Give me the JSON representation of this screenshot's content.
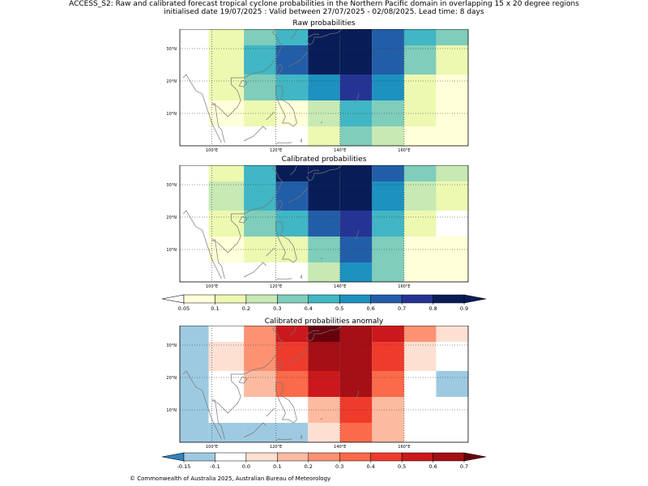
{
  "header": {
    "title_line1": "ACCESS_S2: Raw and calibrated forecast tropical cyclone probabilities in the Northern Pacific domain in overlapping 15 x 20 degree regions",
    "title_line2": "initialised date 19/07/2025 :  Valid between 27/07/2025 - 02/08/2025. Lead time: 8 days"
  },
  "footer": {
    "copyright": "© Commonwealth of Australia 2025, Australian Bureau of Meteorology"
  },
  "map": {
    "lat_labels": [
      "30°N",
      "20°N",
      "10°N"
    ],
    "lon_labels": [
      "100°E",
      "120°E",
      "140°E",
      "160°E"
    ],
    "lat_values": [
      30,
      20,
      10
    ],
    "lon_values": [
      100,
      120,
      140,
      160
    ]
  },
  "chart_data": [
    {
      "type": "heatmap",
      "title": "Raw probabilities",
      "cmap": "prob",
      "xlim": [
        90,
        180
      ],
      "ylim": [
        0,
        36
      ],
      "x_edges": [
        90,
        99,
        110,
        120,
        130,
        140,
        150,
        160,
        170,
        180
      ],
      "y_edges": [
        36,
        31,
        22,
        14,
        6,
        0
      ],
      "values": [
        [
          null,
          0.15,
          0.35,
          0.45,
          0.95,
          0.95,
          0.65,
          0.45,
          0.35
        ],
        [
          null,
          0.15,
          0.45,
          0.65,
          0.95,
          0.95,
          0.65,
          0.35,
          0.15
        ],
        [
          null,
          0.15,
          0.35,
          0.45,
          0.55,
          0.75,
          0.55,
          0.15,
          0.05
        ],
        [
          null,
          0.05,
          0.15,
          0.05,
          0.25,
          0.45,
          0.35,
          0.15,
          0.05
        ],
        [
          null,
          null,
          null,
          null,
          0.15,
          0.35,
          0.25,
          0.05,
          0.05
        ]
      ]
    },
    {
      "type": "heatmap",
      "title": "Calibrated probabilities",
      "cmap": "prob",
      "xlim": [
        90,
        180
      ],
      "ylim": [
        0,
        36
      ],
      "x_edges": [
        90,
        99,
        110,
        120,
        130,
        140,
        150,
        160,
        170,
        180
      ],
      "y_edges": [
        36,
        31,
        22,
        14,
        6,
        0
      ],
      "values": [
        [
          null,
          0.15,
          0.45,
          0.85,
          0.95,
          0.95,
          0.65,
          0.35,
          0.25
        ],
        [
          null,
          0.25,
          0.45,
          0.65,
          0.95,
          0.95,
          0.55,
          0.25,
          0.15
        ],
        [
          null,
          0.15,
          0.35,
          0.45,
          0.65,
          0.75,
          0.45,
          0.15,
          null
        ],
        [
          null,
          0.05,
          0.15,
          0.15,
          0.35,
          0.65,
          0.35,
          0.05,
          0.05
        ],
        [
          null,
          null,
          null,
          null,
          0.25,
          0.55,
          0.35,
          0.05,
          0.05
        ]
      ]
    },
    {
      "type": "heatmap",
      "title": "Calibrated probabilities anomaly",
      "cmap": "anom",
      "xlim": [
        90,
        180
      ],
      "ylim": [
        0,
        36
      ],
      "x_edges": [
        90,
        99,
        110,
        120,
        130,
        140,
        150,
        160,
        170,
        180
      ],
      "y_edges": [
        36,
        31,
        22,
        14,
        6,
        0
      ],
      "values": [
        [
          -0.15,
          null,
          0.25,
          0.55,
          0.75,
          0.65,
          0.55,
          0.25,
          0.05
        ],
        [
          -0.15,
          0.05,
          0.25,
          0.45,
          0.65,
          0.65,
          0.45,
          0.05,
          null
        ],
        [
          -0.15,
          null,
          0.15,
          0.35,
          0.55,
          0.65,
          0.35,
          null,
          -0.15
        ],
        [
          -0.15,
          -0.05,
          null,
          null,
          0.15,
          0.45,
          0.15,
          null,
          -0.05
        ],
        [
          -0.15,
          -0.15,
          -0.15,
          -0.15,
          0.05,
          0.35,
          0.15,
          -0.05,
          -0.05
        ]
      ]
    }
  ],
  "colorbars": {
    "prob": {
      "ticks": [
        "0.05",
        "0.1",
        "0.2",
        "0.3",
        "0.4",
        "0.5",
        "0.6",
        "0.7",
        "0.8",
        "0.9"
      ],
      "colors": [
        "#ffffd9",
        "#edf8b1",
        "#c7e9b4",
        "#7fcdbb",
        "#41b6c4",
        "#1d91c0",
        "#225ea8",
        "#253494",
        "#081d58"
      ],
      "under": "#ffffff",
      "over": "#081d58"
    },
    "anom": {
      "ticks": [
        "-0.15",
        "-0.1",
        "0.0",
        "0.1",
        "0.2",
        "0.3",
        "0.4",
        "0.5",
        "0.6",
        "0.7"
      ],
      "colors": [
        "#9ecae1",
        "#ffffff",
        "#fee0d2",
        "#fcbba1",
        "#fc9272",
        "#fb6a4a",
        "#ef3b2c",
        "#cb181d",
        "#a50f15"
      ],
      "under": "#3182bd",
      "over": "#67000d"
    }
  }
}
